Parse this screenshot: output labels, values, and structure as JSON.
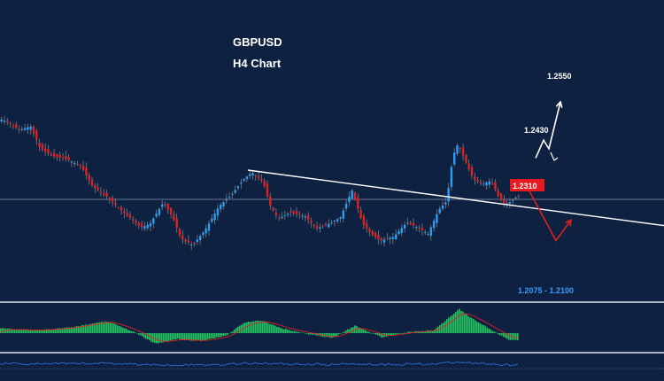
{
  "chart_data": {
    "type": "candlestick",
    "title": "GBPUSD",
    "subtitle": "H4 Chart",
    "colors": {
      "background": "#0f2140",
      "bull": "#2a9df4",
      "bear": "#e02020",
      "wick": "#8a8a8a",
      "trendline": "#ffffff",
      "bullish_path": "#ffffff",
      "bearish_path": "#e02020",
      "macd_hist": "#23c15f",
      "signal": "#e02020",
      "oscillator": "#2a6fd6"
    },
    "y_domain": [
      1.195,
      1.26
    ],
    "price_path": [
      [
        0,
        1.2425
      ],
      [
        10,
        1.2415
      ],
      [
        22,
        1.2395
      ],
      [
        35,
        1.2405
      ],
      [
        46,
        1.2345
      ],
      [
        60,
        1.2325
      ],
      [
        75,
        1.2318
      ],
      [
        92,
        1.2298
      ],
      [
        105,
        1.2245
      ],
      [
        122,
        1.2215
      ],
      [
        140,
        1.2175
      ],
      [
        160,
        1.2135
      ],
      [
        170,
        1.2145
      ],
      [
        185,
        1.2202
      ],
      [
        195,
        1.2165
      ],
      [
        205,
        1.2105
      ],
      [
        218,
        1.2088
      ],
      [
        232,
        1.2128
      ],
      [
        248,
        1.2192
      ],
      [
        262,
        1.2222
      ],
      [
        275,
        1.2262
      ],
      [
        285,
        1.2282
      ],
      [
        298,
        1.2255
      ],
      [
        305,
        1.2195
      ],
      [
        315,
        1.2158
      ],
      [
        328,
        1.2175
      ],
      [
        345,
        1.2165
      ],
      [
        358,
        1.2132
      ],
      [
        372,
        1.2145
      ],
      [
        385,
        1.2162
      ],
      [
        398,
        1.2235
      ],
      [
        410,
        1.2145
      ],
      [
        420,
        1.2118
      ],
      [
        430,
        1.21
      ],
      [
        445,
        1.211
      ],
      [
        460,
        1.2148
      ],
      [
        472,
        1.2135
      ],
      [
        484,
        1.2118
      ],
      [
        496,
        1.2182
      ],
      [
        505,
        1.2205
      ],
      [
        512,
        1.2325
      ],
      [
        518,
        1.236
      ],
      [
        525,
        1.2318
      ],
      [
        535,
        1.2265
      ],
      [
        545,
        1.225
      ],
      [
        555,
        1.226
      ],
      [
        562,
        1.2225
      ],
      [
        570,
        1.2195
      ],
      [
        578,
        1.2205
      ],
      [
        585,
        1.2218
      ]
    ],
    "horizontal_level": 1.221,
    "trendline": {
      "from": [
        280,
        1.2288
      ],
      "to": [
        750,
        1.214
      ]
    },
    "scenario_levels": [
      {
        "label": "1.2550",
        "style": "white-text"
      },
      {
        "label": "1.2430",
        "style": "white-text"
      },
      {
        "label": "1.2310",
        "style": "red-badge"
      },
      {
        "label": "1.2075 - 1.2100",
        "style": "blue-text"
      }
    ],
    "bullish_scenario": [
      [
        605,
        1.232
      ],
      [
        614,
        1.2368
      ],
      [
        620,
        1.2345
      ],
      [
        633,
        1.247
      ]
    ],
    "bearish_scenario": [
      [
        598,
        1.2232
      ],
      [
        628,
        1.21
      ],
      [
        645,
        1.2155
      ]
    ],
    "macd_hist_range": [
      -1,
      1
    ],
    "macd_histogram": [
      [
        0,
        0.18
      ],
      [
        40,
        0.1
      ],
      [
        80,
        0.22
      ],
      [
        120,
        0.45
      ],
      [
        150,
        0.05
      ],
      [
        175,
        -0.4
      ],
      [
        200,
        -0.22
      ],
      [
        225,
        -0.3
      ],
      [
        255,
        -0.08
      ],
      [
        275,
        0.4
      ],
      [
        295,
        0.48
      ],
      [
        315,
        0.2
      ],
      [
        345,
        -0.02
      ],
      [
        375,
        -0.18
      ],
      [
        400,
        0.28
      ],
      [
        430,
        -0.15
      ],
      [
        460,
        0.04
      ],
      [
        490,
        0.12
      ],
      [
        505,
        0.55
      ],
      [
        518,
        0.9
      ],
      [
        530,
        0.6
      ],
      [
        550,
        0.2
      ],
      [
        575,
        -0.28
      ],
      [
        585,
        -0.25
      ]
    ]
  }
}
